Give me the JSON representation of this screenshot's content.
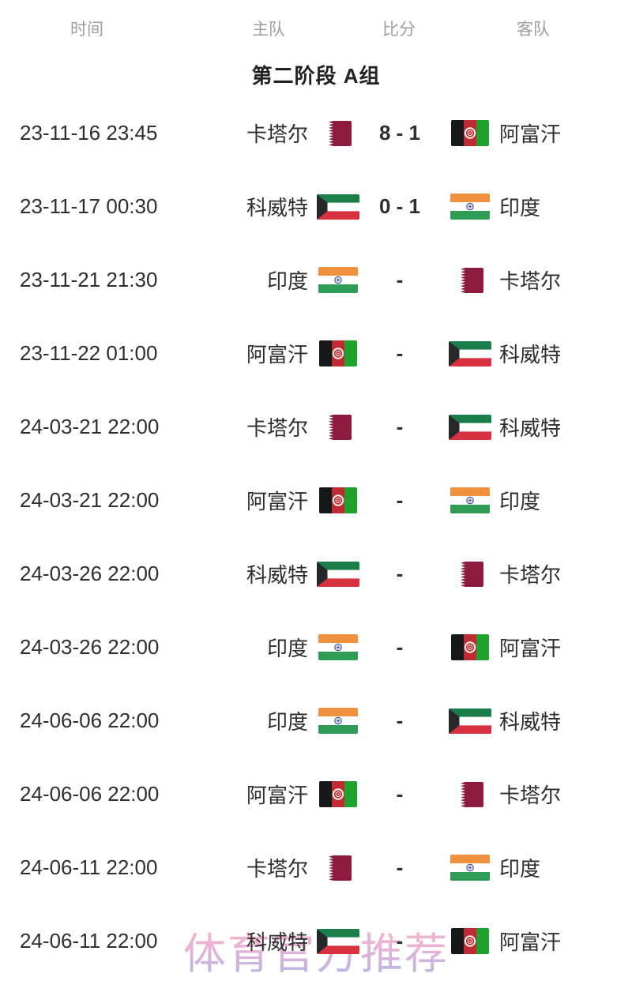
{
  "header": {
    "columns": [
      "时间",
      "主队",
      "比分",
      "客队"
    ]
  },
  "group_title": "第二阶段 A组",
  "watermark": "体育官方推荐",
  "matches": [
    {
      "time": "23-11-16 23:45",
      "home": "卡塔尔",
      "home_flag": "qatar",
      "score": "8 - 1",
      "away": "阿富汗",
      "away_flag": "afghanistan"
    },
    {
      "time": "23-11-17 00:30",
      "home": "科威特",
      "home_flag": "kuwait",
      "score": "0 - 1",
      "away": "印度",
      "away_flag": "india"
    },
    {
      "time": "23-11-21 21:30",
      "home": "印度",
      "home_flag": "india",
      "score": "-",
      "away": "卡塔尔",
      "away_flag": "qatar"
    },
    {
      "time": "23-11-22 01:00",
      "home": "阿富汗",
      "home_flag": "afghanistan",
      "score": "-",
      "away": "科威特",
      "away_flag": "kuwait"
    },
    {
      "time": "24-03-21 22:00",
      "home": "卡塔尔",
      "home_flag": "qatar",
      "score": "-",
      "away": "科威特",
      "away_flag": "kuwait"
    },
    {
      "time": "24-03-21 22:00",
      "home": "阿富汗",
      "home_flag": "afghanistan",
      "score": "-",
      "away": "印度",
      "away_flag": "india"
    },
    {
      "time": "24-03-26 22:00",
      "home": "科威特",
      "home_flag": "kuwait",
      "score": "-",
      "away": "卡塔尔",
      "away_flag": "qatar"
    },
    {
      "time": "24-03-26 22:00",
      "home": "印度",
      "home_flag": "india",
      "score": "-",
      "away": "阿富汗",
      "away_flag": "afghanistan"
    },
    {
      "time": "24-06-06 22:00",
      "home": "印度",
      "home_flag": "india",
      "score": "-",
      "away": "科威特",
      "away_flag": "kuwait"
    },
    {
      "time": "24-06-06 22:00",
      "home": "阿富汗",
      "home_flag": "afghanistan",
      "score": "-",
      "away": "卡塔尔",
      "away_flag": "qatar"
    },
    {
      "time": "24-06-11 22:00",
      "home": "卡塔尔",
      "home_flag": "qatar",
      "score": "-",
      "away": "印度",
      "away_flag": "india"
    },
    {
      "time": "24-06-11 22:00",
      "home": "科威特",
      "home_flag": "kuwait",
      "score": "-",
      "away": "阿富汗",
      "away_flag": "afghanistan"
    }
  ],
  "colors": {
    "text": "#2e2e2e",
    "header_gray": "#9e9e9e",
    "watermark_top": "#f5b7c4",
    "watermark_bottom": "#a9b0ec",
    "qatar_maroon": "#8d1b3d",
    "kuwait_green": "#1a7e4b",
    "kuwait_red": "#d7313f",
    "india_saffron": "#f09140",
    "india_green": "#2e9c55",
    "india_navy": "#3c50a0",
    "afghan_red": "#bf2a33",
    "afghan_green": "#1fa12b"
  }
}
